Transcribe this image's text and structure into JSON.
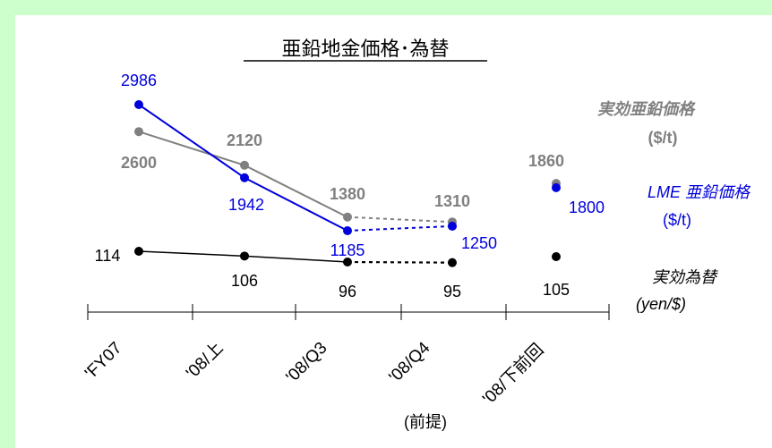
{
  "colors": {
    "background": "#ccffcc",
    "zinc_actual": "#808080",
    "lme": "#0000dd",
    "fx": "#000000"
  },
  "chart_data": {
    "type": "line",
    "title": "亜鉛地金価格･為替",
    "categories": [
      "'FY07",
      "'08/上",
      "'08/Q3",
      "'08/Q4",
      "'08/下前回"
    ],
    "category_note": "(前提)",
    "series": [
      {
        "name": "実効亜鉛価格",
        "unit": "($/t)",
        "values": [
          2600,
          2120,
          1380,
          1310,
          1860
        ],
        "labels": [
          "2600",
          "2120",
          "1380",
          "1310",
          "1860"
        ]
      },
      {
        "name": "LME 亜鉛価格",
        "unit": "($/t)",
        "values": [
          2986,
          1942,
          1185,
          1250,
          1800
        ],
        "labels": [
          "2986",
          "1942",
          "1185",
          "1250",
          "1800"
        ]
      },
      {
        "name": "実効為替",
        "unit": "(yen/$)",
        "values": [
          114,
          106,
          96,
          95,
          105
        ],
        "labels": [
          "114",
          "106",
          "96",
          "95",
          "105"
        ]
      }
    ],
    "dashed_segment": "'08/Q3-'08/Q4",
    "grid": false
  }
}
